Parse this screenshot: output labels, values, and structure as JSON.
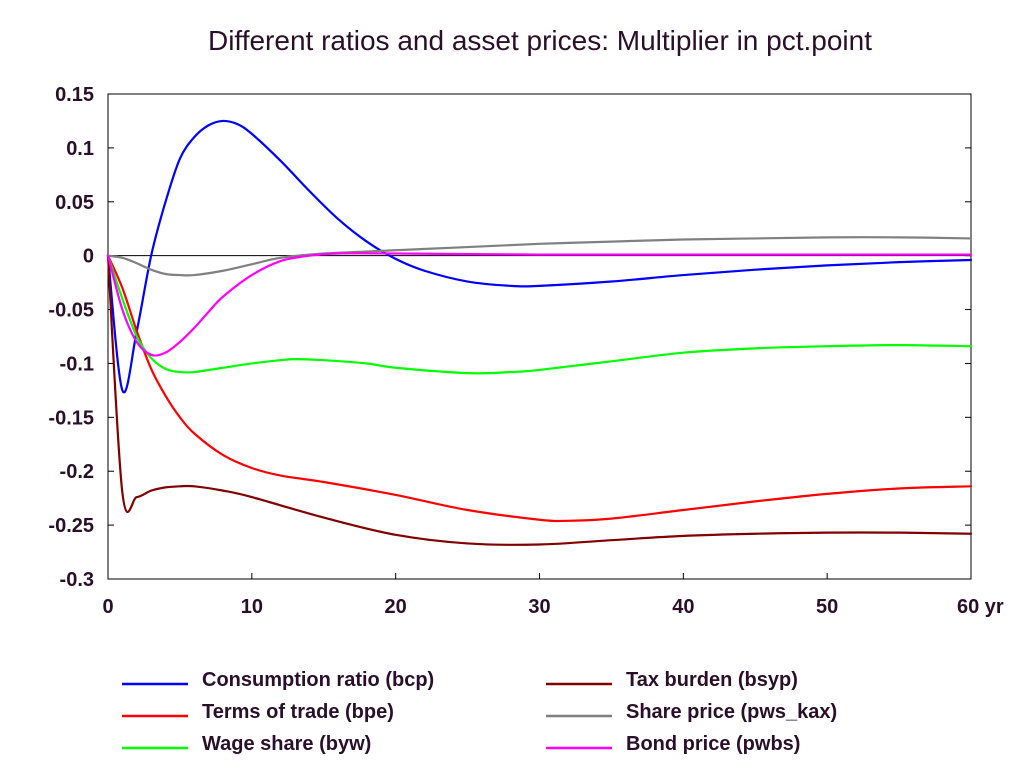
{
  "chart_data": {
    "type": "line",
    "title": "Different ratios and asset prices: Multiplier in pct.point",
    "x_unit": "yr",
    "xlim": [
      0,
      60
    ],
    "ylim": [
      -0.3,
      0.15
    ],
    "x_ticks": [
      0,
      10,
      20,
      30,
      40,
      50,
      60
    ],
    "x_tick_labels": [
      "0",
      "10",
      "20",
      "30",
      "40",
      "50",
      "60 yr"
    ],
    "y_ticks": [
      0.15,
      0.1,
      0.05,
      0,
      -0.05,
      -0.1,
      -0.15,
      -0.2,
      -0.25,
      -0.3
    ],
    "y_tick_labels": [
      "0.15",
      "0.1",
      "0.05",
      "0",
      "-0.05",
      "-0.1",
      "-0.15",
      "-0.2",
      "-0.25",
      "-0.3"
    ],
    "legend_position": "bottom",
    "series": [
      {
        "name": "Consumption ratio (bcp)",
        "color": "#0000ff",
        "x": [
          0,
          1,
          2,
          3,
          4,
          5,
          6,
          7,
          8,
          9,
          10,
          12,
          14,
          16,
          18,
          20,
          22,
          25,
          28,
          30,
          35,
          40,
          45,
          50,
          55,
          60
        ],
        "y": [
          0,
          -0.125,
          -0.07,
          0.0,
          0.05,
          0.09,
          0.11,
          0.121,
          0.125,
          0.122,
          0.113,
          0.088,
          0.06,
          0.034,
          0.013,
          -0.003,
          -0.014,
          -0.024,
          -0.028,
          -0.028,
          -0.024,
          -0.018,
          -0.013,
          -0.009,
          -0.006,
          -0.004
        ]
      },
      {
        "name": "Terms of trade (bpe)",
        "color": "#ff0000",
        "x": [
          0,
          1,
          2,
          3,
          4,
          5,
          6,
          8,
          10,
          12,
          15,
          20,
          25,
          30,
          32,
          35,
          40,
          45,
          50,
          55,
          60
        ],
        "y": [
          0,
          -0.03,
          -0.07,
          -0.105,
          -0.13,
          -0.15,
          -0.165,
          -0.185,
          -0.197,
          -0.204,
          -0.21,
          -0.222,
          -0.236,
          -0.245,
          -0.246,
          -0.244,
          -0.236,
          -0.228,
          -0.221,
          -0.216,
          -0.214
        ]
      },
      {
        "name": "Wage share (byw)",
        "color": "#00ff00",
        "x": [
          0,
          1,
          2,
          3,
          4,
          5,
          6,
          8,
          10,
          12,
          13,
          15,
          18,
          20,
          25,
          28,
          30,
          35,
          40,
          45,
          50,
          55,
          60
        ],
        "y": [
          0,
          -0.04,
          -0.075,
          -0.095,
          -0.105,
          -0.108,
          -0.108,
          -0.104,
          -0.1,
          -0.097,
          -0.096,
          -0.097,
          -0.1,
          -0.104,
          -0.109,
          -0.108,
          -0.106,
          -0.098,
          -0.09,
          -0.086,
          -0.084,
          -0.083,
          -0.084
        ]
      },
      {
        "name": "Tax burden (bsyp)",
        "color": "#800000",
        "x": [
          0,
          1,
          2,
          3,
          4,
          5,
          6,
          8,
          10,
          15,
          20,
          25,
          30,
          35,
          40,
          45,
          50,
          55,
          60
        ],
        "y": [
          0,
          -0.22,
          -0.224,
          -0.218,
          -0.215,
          -0.214,
          -0.214,
          -0.218,
          -0.224,
          -0.243,
          -0.259,
          -0.267,
          -0.268,
          -0.264,
          -0.26,
          -0.258,
          -0.257,
          -0.257,
          -0.258
        ]
      },
      {
        "name": "Share price (pws_kax)",
        "color": "#808080",
        "x": [
          0,
          1,
          2,
          3,
          4,
          5,
          6,
          8,
          10,
          12,
          15,
          20,
          25,
          30,
          35,
          40,
          45,
          50,
          55,
          60
        ],
        "y": [
          0,
          -0.002,
          -0.007,
          -0.013,
          -0.017,
          -0.018,
          -0.018,
          -0.014,
          -0.008,
          -0.002,
          0.002,
          0.005,
          0.008,
          0.011,
          0.013,
          0.015,
          0.016,
          0.017,
          0.017,
          0.016
        ]
      },
      {
        "name": "Bond price (pwbs)",
        "color": "#ff00ff",
        "x": [
          0,
          1,
          2,
          3,
          4,
          5,
          6,
          7,
          8,
          10,
          12,
          14,
          16,
          20,
          30,
          40,
          50,
          60
        ],
        "y": [
          0,
          -0.05,
          -0.08,
          -0.092,
          -0.09,
          -0.08,
          -0.067,
          -0.052,
          -0.038,
          -0.018,
          -0.005,
          0.0,
          0.002,
          0.002,
          0.001,
          0.001,
          0.001,
          0.001
        ]
      }
    ]
  }
}
